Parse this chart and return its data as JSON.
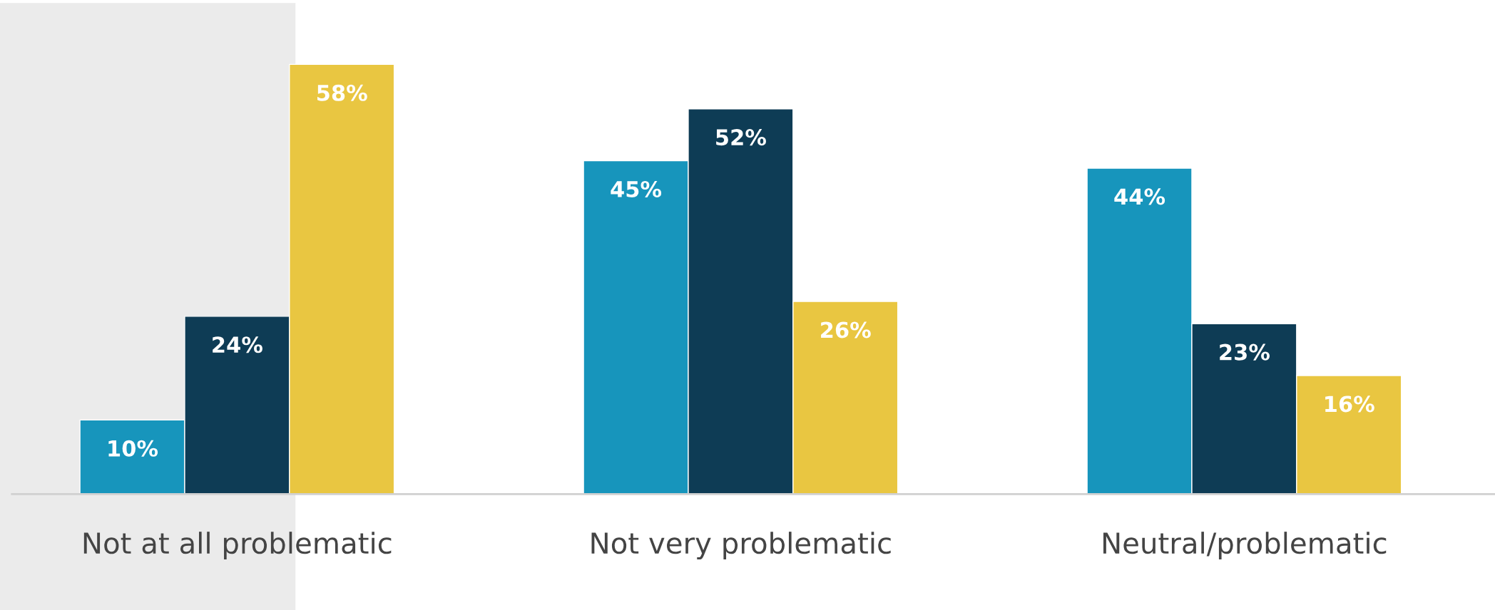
{
  "chart_data": {
    "type": "bar",
    "categories": [
      "Not at all problematic",
      "Not very problematic",
      "Neutral/problematic"
    ],
    "series": [
      {
        "color": "#1795bc",
        "values": [
          10,
          45,
          44
        ],
        "value_labels": [
          "10%",
          "45%",
          "44%"
        ]
      },
      {
        "color": "#0e3c55",
        "values": [
          24,
          52,
          23
        ],
        "value_labels": [
          "24%",
          "52%",
          "23%"
        ]
      },
      {
        "color": "#e9c641",
        "values": [
          58,
          26,
          16
        ],
        "value_labels": [
          "58%",
          "26%",
          "16%"
        ]
      }
    ],
    "bands": [
      {
        "axis": "x",
        "from": "Not at all problematic",
        "to": "Not at all problematic",
        "color": "#ebebeb"
      }
    ],
    "grid": false,
    "legend": false
  }
}
